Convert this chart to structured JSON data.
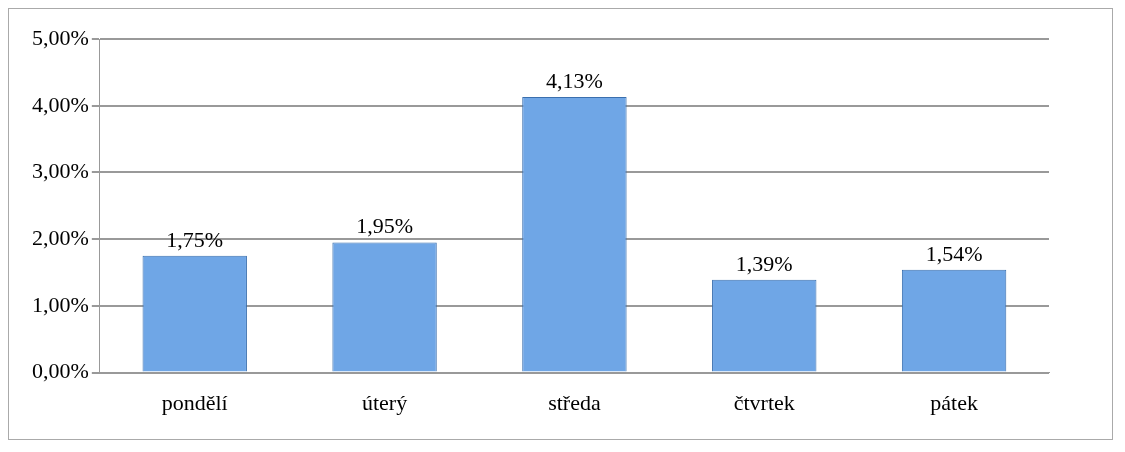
{
  "chart_data": {
    "type": "bar",
    "categories": [
      "pondělí",
      "úterý",
      "středa",
      "čtvrtek",
      "pátek"
    ],
    "values": [
      1.75,
      1.95,
      4.13,
      1.39,
      1.54
    ],
    "value_labels": [
      "1,75%",
      "1,95%",
      "4,13%",
      "1,39%",
      "1,54%"
    ],
    "color": "#6fa6e6",
    "ylim": [
      0,
      5
    ],
    "yticks": [
      {
        "value": 0,
        "label": "0,00%"
      },
      {
        "value": 1,
        "label": "1,00%"
      },
      {
        "value": 2,
        "label": "2,00%"
      },
      {
        "value": 3,
        "label": "3,00%"
      },
      {
        "value": 4,
        "label": "4,00%"
      },
      {
        "value": 5,
        "label": "5,00%"
      }
    ],
    "grid": "y",
    "legend": false
  }
}
